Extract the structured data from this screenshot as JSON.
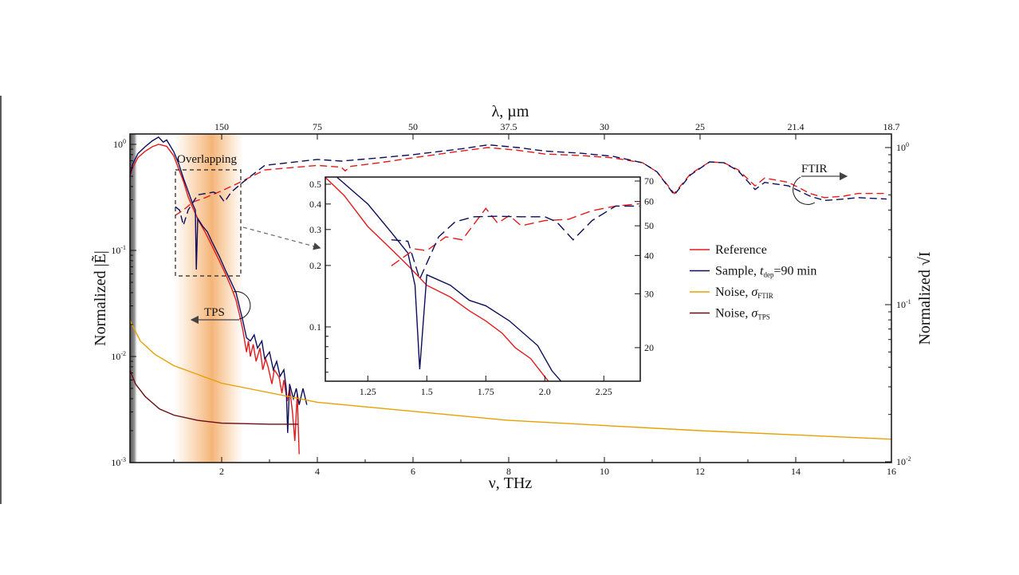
{
  "chart_data": {
    "type": "line",
    "xlabel": "ν, THz",
    "x2label": "λ, µm",
    "ylabel": "Normalized |Ẽ|",
    "y2label": "Normalized √I",
    "xlim": [
      0.08,
      16
    ],
    "ylim": [
      0.001,
      1.26
    ],
    "y2lim": [
      0.01,
      1.17
    ],
    "yscale": "log",
    "y2scale": "log",
    "x_ticks": [
      "2",
      "4",
      "6",
      "8",
      "10",
      "12",
      "14",
      "16"
    ],
    "x_tick_values": [
      2,
      4,
      6,
      8,
      10,
      12,
      14,
      16
    ],
    "x2_ticks": [
      "150",
      "75",
      "50",
      "37.5",
      "30",
      "25",
      "21.4",
      "18.7"
    ],
    "y_ticks": [
      {
        "base": "10",
        "exp": "0",
        "value": 1
      },
      {
        "base": "10",
        "exp": "-1",
        "value": 0.1
      },
      {
        "base": "10",
        "exp": "-2",
        "value": 0.01
      },
      {
        "base": "10",
        "exp": "-3",
        "value": 0.001
      }
    ],
    "y2_ticks": [
      {
        "base": "10",
        "exp": "0",
        "value": 1
      },
      {
        "base": "10",
        "exp": "-1",
        "value": 0.1
      },
      {
        "base": "10",
        "exp": "-2",
        "value": 0.01
      }
    ],
    "grid": false,
    "legend_placement": "center-right",
    "legend": [
      {
        "label": "Reference",
        "color": "#e31a1c"
      },
      {
        "label": "Sample, ",
        "italic": "t",
        "sub": "dep",
        "suffix": "=90 min",
        "color": "#0d0d5c"
      },
      {
        "label": "Noise, ",
        "italic": "σ",
        "sub": "FTIR",
        "color": "#e8a000"
      },
      {
        "label": "Noise, ",
        "italic": "σ",
        "sub": "TPS",
        "color": "#6b0a14"
      }
    ],
    "annotations": {
      "overlap": "Overlapping",
      "tps": "TPS",
      "ftir": "FTIR"
    },
    "shaded_regions": [
      {
        "name": "low-frequency cutoff",
        "x": [
          0.08,
          0.25
        ],
        "color": "#888888"
      },
      {
        "name": "overlapping",
        "x": [
          1.0,
          2.45
        ],
        "color": "#f5b370"
      }
    ],
    "series": [
      {
        "name": "Reference",
        "method": "TPS",
        "axis": "left",
        "style": "solid",
        "color": "#e31a1c",
        "points": [
          [
            0.08,
            0.5
          ],
          [
            0.14,
            0.6
          ],
          [
            0.25,
            0.75
          ],
          [
            0.4,
            0.86
          ],
          [
            0.55,
            0.95
          ],
          [
            0.68,
            1.0
          ],
          [
            0.85,
            0.96
          ],
          [
            1.0,
            0.78
          ],
          [
            1.07,
            0.64
          ],
          [
            1.2,
            0.45
          ],
          [
            1.3,
            0.32
          ],
          [
            1.4,
            0.25
          ],
          [
            1.52,
            0.19
          ],
          [
            1.65,
            0.15
          ],
          [
            1.8,
            0.11
          ],
          [
            1.95,
            0.08
          ],
          [
            2.08,
            0.06
          ],
          [
            2.2,
            0.045
          ],
          [
            2.3,
            0.034
          ],
          [
            2.4,
            0.022
          ],
          [
            2.44,
            0.018
          ],
          [
            2.52,
            0.011
          ],
          [
            2.56,
            0.014
          ],
          [
            2.6,
            0.01
          ],
          [
            2.66,
            0.013
          ],
          [
            2.72,
            0.009
          ],
          [
            2.8,
            0.012
          ],
          [
            2.86,
            0.0075
          ],
          [
            2.92,
            0.0095
          ],
          [
            2.97,
            0.008
          ],
          [
            3.05,
            0.0055
          ],
          [
            3.1,
            0.0075
          ],
          [
            3.2,
            0.0064
          ],
          [
            3.26,
            0.0045
          ],
          [
            3.3,
            0.006
          ],
          [
            3.37,
            0.0038
          ],
          [
            3.42,
            0.005
          ],
          [
            3.48,
            0.003
          ],
          [
            3.53,
            0.0016
          ],
          [
            3.58,
            0.0045
          ],
          [
            3.62,
            0.0012
          ]
        ]
      },
      {
        "name": "Sample, t_dep=90 min",
        "method": "TPS",
        "axis": "left",
        "style": "solid",
        "color": "#0d0d5c",
        "points": [
          [
            0.08,
            0.5
          ],
          [
            0.14,
            0.65
          ],
          [
            0.25,
            0.82
          ],
          [
            0.4,
            0.95
          ],
          [
            0.55,
            1.08
          ],
          [
            0.68,
            1.17
          ],
          [
            0.78,
            1.05
          ],
          [
            0.85,
            1.1
          ],
          [
            1.0,
            0.85
          ],
          [
            1.1,
            0.66
          ],
          [
            1.2,
            0.48
          ],
          [
            1.3,
            0.36
          ],
          [
            1.4,
            0.27
          ],
          [
            1.45,
            0.24
          ],
          [
            1.47,
            0.066
          ],
          [
            1.5,
            0.2
          ],
          [
            1.6,
            0.17
          ],
          [
            1.7,
            0.15
          ],
          [
            1.8,
            0.12
          ],
          [
            1.95,
            0.088
          ],
          [
            2.08,
            0.065
          ],
          [
            2.2,
            0.05
          ],
          [
            2.3,
            0.04
          ],
          [
            2.44,
            0.022
          ],
          [
            2.52,
            0.015
          ],
          [
            2.6,
            0.014
          ],
          [
            2.68,
            0.016
          ],
          [
            2.75,
            0.012
          ],
          [
            2.84,
            0.014
          ],
          [
            2.9,
            0.0095
          ],
          [
            3.0,
            0.011
          ],
          [
            3.08,
            0.0075
          ],
          [
            3.15,
            0.009
          ],
          [
            3.22,
            0.0065
          ],
          [
            3.3,
            0.0075
          ],
          [
            3.35,
            0.005
          ],
          [
            3.38,
            0.0019
          ],
          [
            3.42,
            0.0055
          ],
          [
            3.5,
            0.004
          ],
          [
            3.56,
            0.005
          ],
          [
            3.62,
            0.0035
          ],
          [
            3.7,
            0.005
          ],
          [
            3.78,
            0.0035
          ]
        ]
      },
      {
        "name": "Reference",
        "method": "FTIR",
        "axis": "right",
        "style": "dashed",
        "color": "#e31a1c",
        "points": [
          [
            1.03,
            0.37
          ],
          [
            1.2,
            0.4
          ],
          [
            1.4,
            0.45
          ],
          [
            1.66,
            0.48
          ],
          [
            2.0,
            0.53
          ],
          [
            2.33,
            0.59
          ],
          [
            2.9,
            0.72
          ],
          [
            4.0,
            0.77
          ],
          [
            4.5,
            0.75
          ],
          [
            4.58,
            0.71
          ],
          [
            4.7,
            0.76
          ],
          [
            5.3,
            0.8
          ],
          [
            5.99,
            0.86
          ],
          [
            7.0,
            0.95
          ],
          [
            7.57,
            1.0
          ],
          [
            8.2,
            0.96
          ],
          [
            8.75,
            0.91
          ],
          [
            9.5,
            0.89
          ],
          [
            10.17,
            0.86
          ],
          [
            10.8,
            0.8
          ],
          [
            11.1,
            0.7
          ],
          [
            11.46,
            0.51
          ],
          [
            11.8,
            0.68
          ],
          [
            12.2,
            0.81
          ],
          [
            12.5,
            0.8
          ],
          [
            12.8,
            0.72
          ],
          [
            13.15,
            0.57
          ],
          [
            13.35,
            0.64
          ],
          [
            13.85,
            0.6
          ],
          [
            14.3,
            0.51
          ],
          [
            14.6,
            0.48
          ],
          [
            15.0,
            0.49
          ],
          [
            15.3,
            0.51
          ],
          [
            15.9,
            0.51
          ]
        ]
      },
      {
        "name": "Sample, t_dep=90 min",
        "method": "FTIR",
        "axis": "right",
        "style": "dashed",
        "color": "#0d0d5c",
        "points": [
          [
            1.03,
            0.42
          ],
          [
            1.12,
            0.4
          ],
          [
            1.2,
            0.32
          ],
          [
            1.3,
            0.4
          ],
          [
            1.5,
            0.5
          ],
          [
            1.83,
            0.52
          ],
          [
            1.95,
            0.5
          ],
          [
            2.06,
            0.45
          ],
          [
            2.2,
            0.52
          ],
          [
            2.44,
            0.6
          ],
          [
            2.9,
            0.77
          ],
          [
            4.0,
            0.84
          ],
          [
            4.5,
            0.82
          ],
          [
            5.3,
            0.86
          ],
          [
            5.99,
            0.9
          ],
          [
            7.0,
            0.98
          ],
          [
            7.57,
            1.04
          ],
          [
            8.2,
            1.0
          ],
          [
            8.75,
            0.95
          ],
          [
            9.5,
            0.92
          ],
          [
            10.17,
            0.88
          ],
          [
            10.8,
            0.8
          ],
          [
            11.1,
            0.7
          ],
          [
            11.46,
            0.5
          ],
          [
            11.8,
            0.67
          ],
          [
            12.2,
            0.81
          ],
          [
            12.5,
            0.8
          ],
          [
            12.8,
            0.71
          ],
          [
            13.15,
            0.54
          ],
          [
            13.35,
            0.6
          ],
          [
            13.85,
            0.57
          ],
          [
            14.3,
            0.49
          ],
          [
            14.6,
            0.46
          ],
          [
            15.0,
            0.47
          ],
          [
            15.3,
            0.48
          ],
          [
            15.9,
            0.47
          ]
        ]
      },
      {
        "name": "Noise, σ_FTIR",
        "axis": "left",
        "style": "solid",
        "color": "#e8a000",
        "points": [
          [
            0.08,
            0.022
          ],
          [
            0.3,
            0.014
          ],
          [
            0.6,
            0.0105
          ],
          [
            1,
            0.0082
          ],
          [
            2,
            0.0056
          ],
          [
            4,
            0.0037
          ],
          [
            8,
            0.0025
          ],
          [
            12,
            0.002
          ],
          [
            16,
            0.00166
          ]
        ]
      },
      {
        "name": "Noise, σ_TPS",
        "axis": "left",
        "style": "solid",
        "color": "#6b0a14",
        "points": [
          [
            0.08,
            0.0075
          ],
          [
            0.2,
            0.0055
          ],
          [
            0.4,
            0.0042
          ],
          [
            0.7,
            0.0032
          ],
          [
            1,
            0.0028
          ],
          [
            1.5,
            0.0025
          ],
          [
            2,
            0.00235
          ],
          [
            3,
            0.0023
          ],
          [
            3.6,
            0.0023
          ]
        ]
      }
    ],
    "inset": {
      "xlim": [
        1.07,
        2.405
      ],
      "ylim": [
        0.054,
        0.54
      ],
      "y2lim": [
        15.5,
        72
      ],
      "x_ticks": [
        "1.25",
        "1.5",
        "1.75",
        "2.0",
        "2.25"
      ],
      "x_tick_values": [
        1.25,
        1.5,
        1.75,
        2.0,
        2.25
      ],
      "y_ticks": [
        "0.5",
        "0.4",
        "0.3",
        "0.2",
        "0.1"
      ],
      "y_tick_values": [
        0.5,
        0.4,
        0.3,
        0.2,
        0.1
      ],
      "y2_ticks": [
        "70",
        "60",
        "50",
        "40",
        "30",
        "20"
      ],
      "y2_tick_values": [
        70,
        60,
        50,
        40,
        30,
        20
      ],
      "series": [
        {
          "name": "Reference",
          "method": "TPS",
          "axis": "left",
          "style": "solid",
          "color": "#e31a1c",
          "points": [
            [
              1.07,
              0.54
            ],
            [
              1.15,
              0.44
            ],
            [
              1.25,
              0.31
            ],
            [
              1.35,
              0.24
            ],
            [
              1.42,
              0.2
            ],
            [
              1.5,
              0.16
            ],
            [
              1.6,
              0.14
            ],
            [
              1.68,
              0.12
            ],
            [
              1.75,
              0.107
            ],
            [
              1.82,
              0.093
            ],
            [
              1.875,
              0.079
            ],
            [
              1.94,
              0.07
            ],
            [
              2.0,
              0.057
            ],
            [
              2.04,
              0.05
            ]
          ]
        },
        {
          "name": "Sample",
          "method": "TPS",
          "axis": "left",
          "style": "solid",
          "color": "#0d0d5c",
          "points": [
            [
              1.12,
              0.54
            ],
            [
              1.25,
              0.4
            ],
            [
              1.35,
              0.29
            ],
            [
              1.42,
              0.23
            ],
            [
              1.45,
              0.16
            ],
            [
              1.47,
              0.062
            ],
            [
              1.5,
              0.18
            ],
            [
              1.6,
              0.16
            ],
            [
              1.68,
              0.135
            ],
            [
              1.75,
              0.127
            ],
            [
              1.85,
              0.107
            ],
            [
              1.97,
              0.081
            ],
            [
              2.03,
              0.061
            ],
            [
              2.07,
              0.054
            ]
          ]
        },
        {
          "name": "Reference",
          "method": "FTIR",
          "axis": "right",
          "style": "dashed",
          "color": "#e31a1c",
          "points": [
            [
              1.35,
              37
            ],
            [
              1.45,
              42
            ],
            [
              1.5,
              41.5
            ],
            [
              1.58,
              46
            ],
            [
              1.65,
              45
            ],
            [
              1.75,
              57
            ],
            [
              1.8,
              51
            ],
            [
              1.85,
              54
            ],
            [
              1.9,
              50
            ],
            [
              2.0,
              52
            ],
            [
              2.1,
              52.5
            ],
            [
              2.2,
              56
            ],
            [
              2.3,
              58
            ],
            [
              2.4,
              59
            ]
          ]
        },
        {
          "name": "Sample",
          "method": "FTIR",
          "axis": "right",
          "style": "dashed",
          "color": "#0d0d5c",
          "points": [
            [
              1.35,
              45
            ],
            [
              1.42,
              44.5
            ],
            [
              1.47,
              33.5
            ],
            [
              1.55,
              46
            ],
            [
              1.62,
              51.5
            ],
            [
              1.7,
              53.5
            ],
            [
              1.8,
              53.7
            ],
            [
              1.9,
              53.5
            ],
            [
              2.0,
              53.5
            ],
            [
              2.05,
              51.5
            ],
            [
              2.12,
              45
            ],
            [
              2.2,
              52
            ],
            [
              2.3,
              58
            ],
            [
              2.4,
              58
            ]
          ]
        }
      ]
    }
  }
}
